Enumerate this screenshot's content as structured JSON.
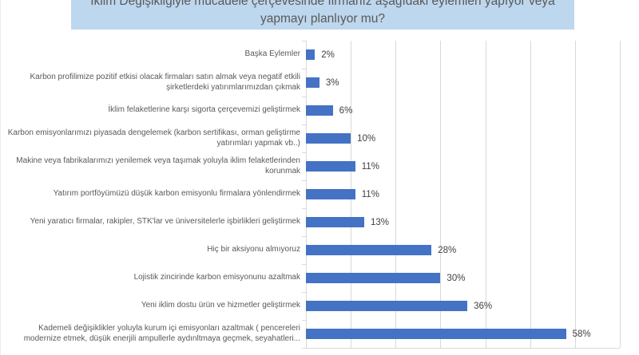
{
  "chart_data": {
    "type": "bar",
    "orientation": "horizontal",
    "title": "İklim Değişikliğiyle mücadele çerçevesinde firmanız aşağıdaki eylemleri yapıyor veya yapmayı planlıyor mu?",
    "categories": [
      "Başka Eylemler",
      "Karbon profilimize pozitif etkisi olacak firmaları satın almak veya negatif etkili şirketlerdeki yatırımlarımızdan çıkmak",
      "İklim felaketlerine karşı sigorta çerçevemizi geliştirmek",
      "Karbon emisyonlarımızı piyasada dengelemek (karbon sertifikası, orman geliştirme yatırımları yapmak vb..)",
      "Makine veya fabrikalarımızı yenilemek veya taşımak yoluyla iklim felaketlerinden korunmak",
      "Yatırım portföyümüzü düşük karbon emisyonlu firmalara yönlendirmek",
      "Yeni yaratıcı firmalar, rakipler, STK'lar ve üniversitelerle işbirlikleri geliştirmek",
      "Hiç bir aksiyonu almıyoruz",
      "Lojistik zincirinde karbon emisyonunu azaltmak",
      "Yeni iklim dostu ürün ve hizmetler geliştirmek",
      "Kademeli değişiklikler yoluyla kurum içi emisyonları azaltmak ( pencereleri modernize etmek, düşük enerjili ampullerle aydınltmaya geçmek, seyahatleri..."
    ],
    "values": [
      2,
      3,
      6,
      10,
      11,
      11,
      13,
      28,
      30,
      36,
      58
    ],
    "value_labels": [
      "2%",
      "3%",
      "6%",
      "10%",
      "11%",
      "11%",
      "13%",
      "28%",
      "30%",
      "36%",
      "58%"
    ],
    "category_order": "top-to-bottom as displayed",
    "xlabel": "",
    "ylabel": "",
    "xlim": [
      0,
      70
    ],
    "gridline_step": 10,
    "grid": true,
    "legend": false,
    "colors": {
      "bar": "#4472C4",
      "title_background": "#BDD7EE",
      "title_text": "#595959",
      "category_label": "#595959",
      "value_label": "#404040",
      "gridline": "#D9D9D9"
    }
  }
}
